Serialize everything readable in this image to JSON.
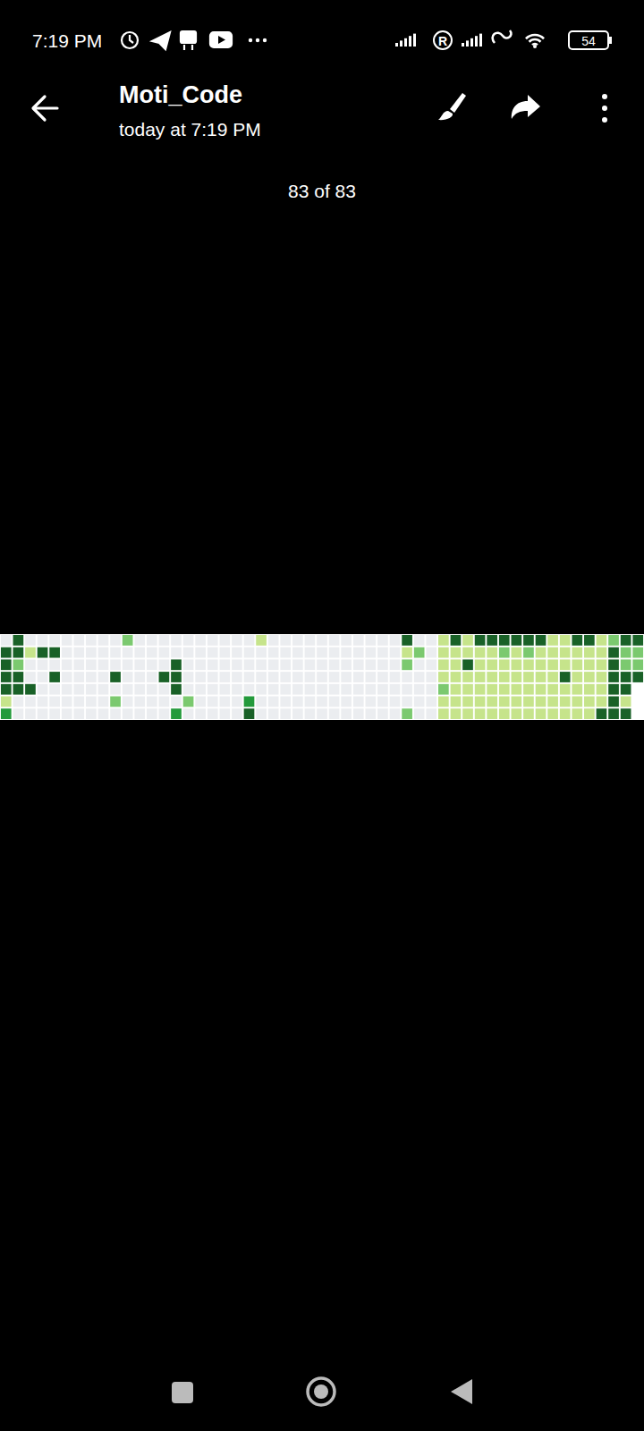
{
  "status_bar": {
    "time": "7:19 PM",
    "roaming": "R",
    "battery": 54
  },
  "header": {
    "title": "Moti_Code",
    "subtitle": "today at 7:19 PM"
  },
  "counter": "83 of 83",
  "chart_data": {
    "type": "heatmap",
    "tick_labels": false,
    "colors": [
      "#ebedf0",
      "#c6e48b",
      "#7bc96f",
      "#239a3b",
      "#196127"
    ],
    "cells": [
      [
        0,
        4,
        0,
        0,
        0,
        0,
        0,
        0,
        0,
        0,
        2,
        0,
        0,
        0,
        0,
        0,
        0,
        0,
        0,
        0,
        0,
        1,
        0,
        0,
        0,
        0,
        0,
        0,
        0,
        0,
        0,
        0,
        0,
        4,
        0,
        0,
        1,
        4,
        1,
        4,
        4,
        4,
        4,
        4,
        4,
        1,
        1,
        4,
        4,
        1,
        2,
        4,
        4
      ],
      [
        4,
        4,
        1,
        4,
        4,
        0,
        0,
        0,
        0,
        0,
        0,
        0,
        0,
        0,
        0,
        0,
        0,
        0,
        0,
        0,
        0,
        0,
        0,
        0,
        0,
        0,
        0,
        0,
        0,
        0,
        0,
        0,
        0,
        1,
        2,
        0,
        1,
        1,
        1,
        1,
        1,
        2,
        1,
        2,
        1,
        1,
        1,
        1,
        1,
        1,
        4,
        2,
        2
      ],
      [
        4,
        2,
        0,
        0,
        0,
        0,
        0,
        0,
        0,
        0,
        0,
        0,
        0,
        0,
        4,
        0,
        0,
        0,
        0,
        0,
        0,
        0,
        0,
        0,
        0,
        0,
        0,
        0,
        0,
        0,
        0,
        0,
        0,
        2,
        0,
        0,
        1,
        1,
        4,
        1,
        1,
        1,
        1,
        1,
        1,
        1,
        1,
        1,
        1,
        1,
        4,
        2,
        2
      ],
      [
        4,
        4,
        0,
        0,
        4,
        0,
        0,
        0,
        0,
        4,
        0,
        0,
        0,
        4,
        4,
        0,
        0,
        0,
        0,
        0,
        0,
        0,
        0,
        0,
        0,
        0,
        0,
        0,
        0,
        0,
        0,
        0,
        0,
        0,
        0,
        0,
        1,
        1,
        1,
        1,
        1,
        1,
        1,
        1,
        1,
        1,
        4,
        1,
        1,
        1,
        4,
        4,
        4
      ],
      [
        4,
        4,
        4,
        0,
        0,
        0,
        0,
        0,
        0,
        0,
        0,
        0,
        0,
        0,
        4,
        0,
        0,
        0,
        0,
        0,
        0,
        0,
        0,
        0,
        0,
        0,
        0,
        0,
        0,
        0,
        0,
        0,
        0,
        0,
        0,
        0,
        2,
        1,
        1,
        1,
        1,
        1,
        1,
        1,
        1,
        1,
        1,
        1,
        1,
        1,
        4,
        4,
        null
      ],
      [
        1,
        0,
        0,
        0,
        0,
        0,
        0,
        0,
        0,
        2,
        0,
        0,
        0,
        0,
        0,
        2,
        0,
        0,
        0,
        0,
        3,
        0,
        0,
        0,
        0,
        0,
        0,
        0,
        0,
        0,
        0,
        0,
        0,
        0,
        0,
        0,
        1,
        1,
        1,
        1,
        1,
        1,
        1,
        1,
        1,
        1,
        1,
        1,
        1,
        1,
        4,
        1,
        null
      ],
      [
        3,
        0,
        0,
        0,
        0,
        0,
        0,
        0,
        0,
        0,
        0,
        0,
        0,
        0,
        3,
        0,
        0,
        0,
        0,
        0,
        4,
        0,
        0,
        0,
        0,
        0,
        0,
        0,
        0,
        0,
        0,
        0,
        0,
        2,
        0,
        0,
        1,
        1,
        1,
        1,
        1,
        1,
        1,
        1,
        1,
        1,
        1,
        1,
        1,
        4,
        4,
        4,
        null
      ]
    ]
  }
}
